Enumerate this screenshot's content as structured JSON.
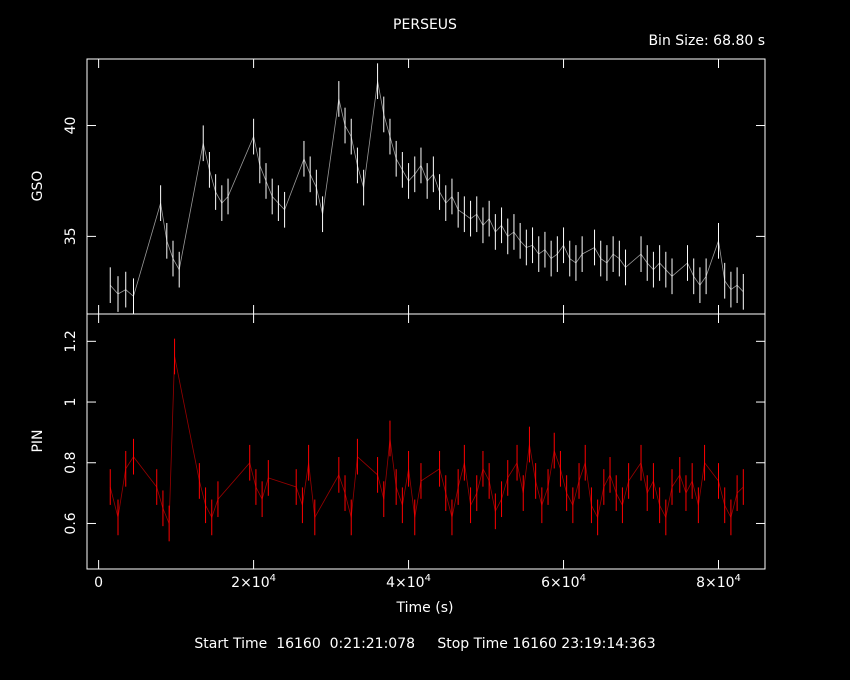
{
  "title": "PERSEUS",
  "bin_size_label": "Bin Size:  68.80  s",
  "footer": {
    "start_label": "Start Time",
    "start_value": "16160  0:21:21:078",
    "stop_label": "Stop Time",
    "stop_value": "16160 23:19:14:363"
  },
  "colors": {
    "gso": "#ffffff",
    "pin": "#ff0000",
    "axes": "#ffffff",
    "background": "#000000"
  },
  "chart_data": [
    {
      "type": "line",
      "ylabel": "GSO",
      "xlabel": "",
      "xlim": [
        -1500,
        86000
      ],
      "ylim": [
        31.5,
        43
      ],
      "yticks": [
        {
          "value": 35,
          "label": "35"
        },
        {
          "value": 40,
          "label": "40"
        }
      ],
      "series": [
        {
          "x": [
            1500,
            2500,
            3500,
            4500,
            8000,
            8800,
            9600,
            10400,
            13500,
            14300,
            15100,
            15900,
            16700,
            20000,
            20800,
            21600,
            22400,
            23200,
            24000,
            26500,
            27300,
            28100,
            28900,
            31000,
            31800,
            32600,
            33400,
            34200,
            36000,
            36800,
            37600,
            38400,
            39200,
            40000,
            40800,
            41600,
            42400,
            43200,
            44000,
            44800,
            45600,
            46400,
            47200,
            48000,
            48800,
            49600,
            50400,
            51200,
            52000,
            52800,
            53600,
            54400,
            55200,
            56000,
            56800,
            57600,
            58400,
            59200,
            60000,
            60800,
            61600,
            62400,
            64000,
            64800,
            65600,
            66400,
            67200,
            68000,
            70000,
            70800,
            71600,
            72400,
            73200,
            74000,
            76000,
            76800,
            77600,
            78400,
            80000,
            80800,
            81600,
            82400,
            83200
          ],
          "y": [
            32.8,
            32.4,
            32.6,
            32.3,
            36.5,
            34.8,
            34.0,
            33.5,
            39.2,
            38.0,
            37.0,
            36.5,
            36.8,
            39.5,
            38.2,
            37.5,
            36.8,
            36.5,
            36.2,
            38.5,
            37.8,
            37.2,
            36.0,
            41.2,
            40.0,
            39.5,
            38.2,
            37.2,
            42.0,
            40.5,
            39.5,
            38.5,
            38.0,
            37.5,
            37.8,
            38.2,
            37.5,
            37.8,
            37.0,
            36.5,
            36.8,
            36.2,
            36.0,
            35.8,
            36.0,
            35.5,
            35.8,
            35.2,
            35.5,
            35.0,
            35.2,
            34.8,
            34.5,
            34.6,
            34.2,
            34.4,
            34.0,
            34.2,
            34.6,
            34.0,
            33.8,
            34.2,
            34.5,
            34.0,
            33.8,
            34.2,
            34.0,
            33.6,
            34.2,
            33.8,
            33.5,
            33.8,
            33.5,
            33.2,
            33.8,
            33.2,
            32.8,
            33.2,
            34.8,
            33.0,
            32.6,
            32.8,
            32.5
          ]
        }
      ]
    },
    {
      "type": "line",
      "ylabel": "PIN",
      "xlabel": "Time (s)",
      "xlim": [
        -1500,
        86000
      ],
      "ylim": [
        0.45,
        1.29
      ],
      "yticks": [
        {
          "value": 0.6,
          "label": "0.6"
        },
        {
          "value": 0.8,
          "label": "0.8"
        },
        {
          "value": 1.0,
          "label": "1"
        },
        {
          "value": 1.2,
          "label": "1.2"
        }
      ],
      "xticks": [
        {
          "value": 0,
          "label": "0"
        },
        {
          "value": 20000,
          "label": "2×10",
          "exp": "4"
        },
        {
          "value": 40000,
          "label": "4×10",
          "exp": "4"
        },
        {
          "value": 60000,
          "label": "6×10",
          "exp": "4"
        },
        {
          "value": 80000,
          "label": "8×10",
          "exp": "4"
        }
      ],
      "series": [
        {
          "x": [
            1500,
            2500,
            3500,
            4500,
            7500,
            8300,
            9100,
            9800,
            13000,
            13800,
            14600,
            15400,
            19500,
            20300,
            21100,
            21900,
            25500,
            26300,
            27100,
            27900,
            31000,
            31800,
            32600,
            33400,
            36000,
            36800,
            37600,
            38400,
            39200,
            40000,
            40800,
            41600,
            44000,
            44800,
            45600,
            46400,
            47200,
            48000,
            48800,
            49600,
            50400,
            51200,
            52000,
            52800,
            54000,
            54800,
            55600,
            56400,
            57200,
            58000,
            58800,
            59600,
            60400,
            61200,
            62000,
            62800,
            63600,
            64400,
            65200,
            66000,
            66800,
            67600,
            68400,
            70000,
            70800,
            71600,
            72400,
            73200,
            74000,
            75000,
            75800,
            76600,
            77400,
            78200,
            80000,
            80800,
            81600,
            82400,
            83200
          ],
          "y": [
            0.72,
            0.62,
            0.78,
            0.82,
            0.72,
            0.65,
            0.6,
            1.15,
            0.74,
            0.66,
            0.62,
            0.68,
            0.8,
            0.72,
            0.68,
            0.75,
            0.72,
            0.66,
            0.8,
            0.62,
            0.76,
            0.7,
            0.62,
            0.82,
            0.76,
            0.68,
            0.88,
            0.72,
            0.66,
            0.78,
            0.62,
            0.74,
            0.78,
            0.7,
            0.62,
            0.72,
            0.8,
            0.66,
            0.7,
            0.78,
            0.74,
            0.64,
            0.68,
            0.75,
            0.8,
            0.7,
            0.86,
            0.74,
            0.66,
            0.72,
            0.84,
            0.78,
            0.7,
            0.66,
            0.74,
            0.8,
            0.66,
            0.62,
            0.72,
            0.76,
            0.7,
            0.66,
            0.74,
            0.8,
            0.7,
            0.74,
            0.66,
            0.62,
            0.72,
            0.76,
            0.7,
            0.74,
            0.66,
            0.8,
            0.74,
            0.66,
            0.62,
            0.7,
            0.72
          ]
        }
      ]
    }
  ]
}
